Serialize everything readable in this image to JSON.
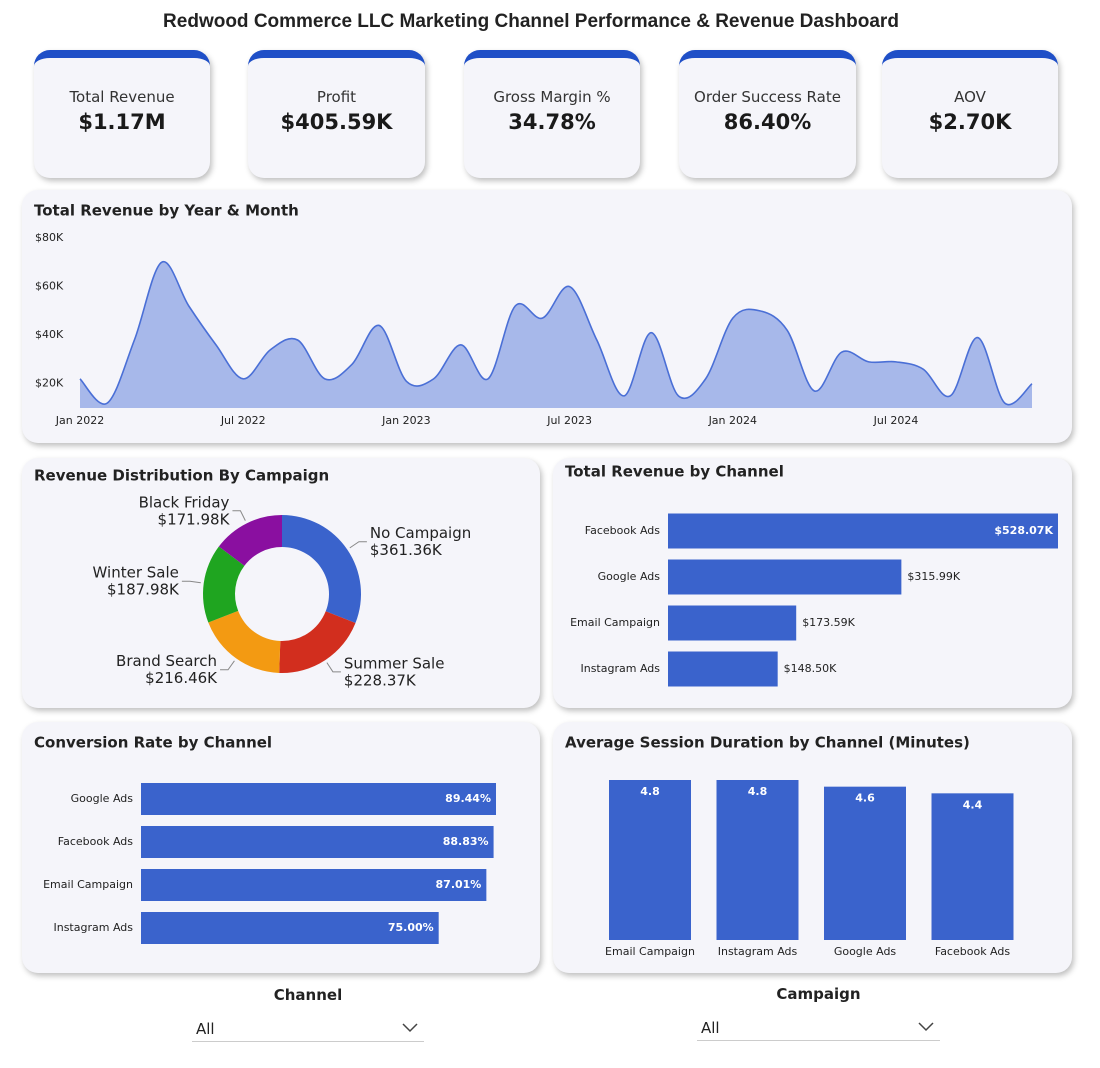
{
  "header": {
    "title": "Redwood Commerce LLC Marketing Channel Performance & Revenue Dashboard"
  },
  "kpis": [
    {
      "label": "Total Revenue",
      "value": "$1.17M"
    },
    {
      "label": "Profit",
      "value": "$405.59K"
    },
    {
      "label": "Gross Margin %",
      "value": "34.78%"
    },
    {
      "label": "Order Success Rate",
      "value": "86.40%"
    },
    {
      "label": "AOV",
      "value": "$2.70K"
    }
  ],
  "chart_data": [
    {
      "type": "area",
      "title": "Total Revenue by Year & Month",
      "x": [
        "2022-01",
        "2022-02",
        "2022-03",
        "2022-04",
        "2022-05",
        "2022-06",
        "2022-07",
        "2022-08",
        "2022-09",
        "2022-10",
        "2022-11",
        "2022-12",
        "2023-01",
        "2023-02",
        "2023-03",
        "2023-04",
        "2023-05",
        "2023-06",
        "2023-07",
        "2023-08",
        "2023-09",
        "2023-10",
        "2023-11",
        "2023-12",
        "2024-01",
        "2024-02",
        "2024-03",
        "2024-04",
        "2024-05",
        "2024-06",
        "2024-07",
        "2024-08",
        "2024-09",
        "2024-10",
        "2024-11",
        "2024-12"
      ],
      "values": [
        22000,
        12000,
        38000,
        70000,
        52000,
        36000,
        22000,
        34000,
        38000,
        22000,
        28000,
        44000,
        21000,
        22000,
        36000,
        22000,
        52000,
        47000,
        60000,
        38000,
        15000,
        41000,
        15000,
        22000,
        47000,
        50000,
        42000,
        17000,
        33000,
        29000,
        29000,
        26000,
        15000,
        39000,
        12000,
        20000
      ],
      "color": "#4a6fd6",
      "xlim": [
        "2022-01",
        "2024-12"
      ],
      "xticks": [
        {
          "value": "2022-01",
          "label": "Jan 2022"
        },
        {
          "value": "2022-07",
          "label": "Jul 2022"
        },
        {
          "value": "2023-01",
          "label": "Jan 2023"
        },
        {
          "value": "2023-07",
          "label": "Jul 2023"
        },
        {
          "value": "2024-01",
          "label": "Jan 2024"
        },
        {
          "value": "2024-07",
          "label": "Jul 2024"
        }
      ],
      "ylim": [
        10000,
        80000
      ],
      "yticks": [
        {
          "value": 20000,
          "label": "$20K"
        },
        {
          "value": 40000,
          "label": "$40K"
        },
        {
          "value": 60000,
          "label": "$60K"
        },
        {
          "value": 80000,
          "label": "$80K"
        }
      ]
    },
    {
      "type": "donut",
      "title": "Revenue Distribution By Campaign",
      "categories": [
        "No Campaign",
        "Summer Sale",
        "Brand Search",
        "Winter Sale",
        "Black Friday"
      ],
      "values": [
        361360,
        228370,
        216460,
        187980,
        171980
      ],
      "value_labels": [
        "$361.36K",
        "$228.37K",
        "$216.46K",
        "$187.98K",
        "$171.98K"
      ],
      "colors": [
        "#3a63cc",
        "#d22e1e",
        "#f39a12",
        "#1fa520",
        "#8a0fa0"
      ]
    },
    {
      "type": "hbar",
      "title": "Total Revenue by Channel",
      "categories": [
        "Facebook Ads",
        "Google Ads",
        "Email Campaign",
        "Instagram Ads"
      ],
      "values": [
        528070,
        315990,
        173590,
        148500
      ],
      "value_labels": [
        "$528.07K",
        "$315.99K",
        "$173.59K",
        "$148.50K"
      ],
      "color": "#3a63cc"
    },
    {
      "type": "hbar",
      "title": "Conversion Rate by Channel",
      "categories": [
        "Google Ads",
        "Facebook Ads",
        "Email Campaign",
        "Instagram Ads"
      ],
      "values": [
        89.44,
        88.83,
        87.01,
        75
      ],
      "value_labels": [
        "89.44%",
        "88.83%",
        "87.01%",
        "75.00%"
      ],
      "color": "#3a63cc"
    },
    {
      "type": "bar",
      "title": "Average Session Duration by Channel (Minutes)",
      "categories": [
        "Email Campaign",
        "Instagram Ads",
        "Google Ads",
        "Facebook Ads"
      ],
      "values": [
        4.8,
        4.8,
        4.6,
        4.4
      ],
      "color": "#3a63cc"
    }
  ],
  "filters": [
    {
      "label": "Channel",
      "selected": "All"
    },
    {
      "label": "Campaign",
      "selected": "All"
    }
  ]
}
